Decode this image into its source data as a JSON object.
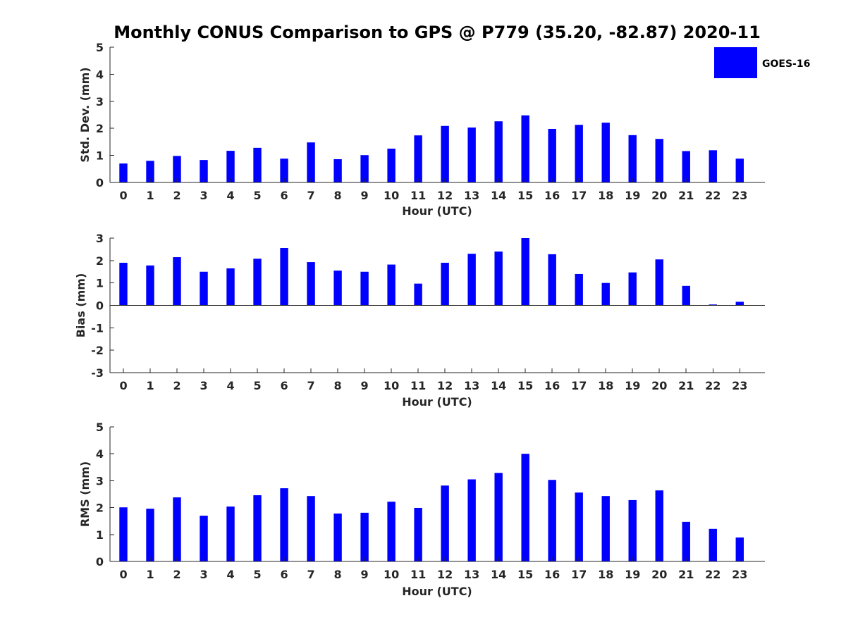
{
  "title": "Monthly CONUS Comparison to GPS @ P779 (35.20, -82.87) 2020-11",
  "legend": {
    "label": "GOES-16",
    "color": "#0000ff"
  },
  "chart_data": [
    {
      "type": "bar",
      "title": "Monthly CONUS Comparison to GPS @ P779 (35.20, -82.87) 2020-11",
      "xlabel": "Hour (UTC)",
      "ylabel": "Std. Dev. (mm)",
      "ylim": [
        0,
        5
      ],
      "yticks": [
        0,
        1,
        2,
        3,
        4,
        5
      ],
      "categories": [
        "0",
        "1",
        "2",
        "3",
        "4",
        "5",
        "6",
        "7",
        "8",
        "9",
        "10",
        "11",
        "12",
        "13",
        "14",
        "15",
        "16",
        "17",
        "18",
        "19",
        "20",
        "21",
        "22",
        "23"
      ],
      "series": [
        {
          "name": "GOES-16",
          "values": [
            0.7,
            0.8,
            0.98,
            0.83,
            1.17,
            1.28,
            0.88,
            1.48,
            0.86,
            1.01,
            1.25,
            1.74,
            2.09,
            2.03,
            2.26,
            2.48,
            1.98,
            2.13,
            2.21,
            1.75,
            1.61,
            1.16,
            1.19,
            0.88
          ]
        }
      ]
    },
    {
      "type": "bar",
      "xlabel": "Hour (UTC)",
      "ylabel": "Bias (mm)",
      "ylim": [
        -3,
        3
      ],
      "yticks": [
        -3,
        -2,
        -1,
        0,
        1,
        2,
        3
      ],
      "categories": [
        "0",
        "1",
        "2",
        "3",
        "4",
        "5",
        "6",
        "7",
        "8",
        "9",
        "10",
        "11",
        "12",
        "13",
        "14",
        "15",
        "16",
        "17",
        "18",
        "19",
        "20",
        "21",
        "22",
        "23"
      ],
      "series": [
        {
          "name": "GOES-16",
          "values": [
            1.9,
            1.78,
            2.15,
            1.5,
            1.65,
            2.08,
            2.56,
            1.93,
            1.55,
            1.5,
            1.82,
            0.97,
            1.9,
            2.3,
            2.4,
            3.0,
            2.28,
            1.4,
            1.0,
            1.47,
            2.05,
            0.87,
            0.04,
            0.16
          ]
        }
      ]
    },
    {
      "type": "bar",
      "xlabel": "Hour (UTC)",
      "ylabel": "RMS (mm)",
      "ylim": [
        0,
        5
      ],
      "yticks": [
        0,
        1,
        2,
        3,
        4,
        5
      ],
      "categories": [
        "0",
        "1",
        "2",
        "3",
        "4",
        "5",
        "6",
        "7",
        "8",
        "9",
        "10",
        "11",
        "12",
        "13",
        "14",
        "15",
        "16",
        "17",
        "18",
        "19",
        "20",
        "21",
        "22",
        "23"
      ],
      "series": [
        {
          "name": "GOES-16",
          "values": [
            2.01,
            1.96,
            2.38,
            1.7,
            2.04,
            2.46,
            2.72,
            2.43,
            1.78,
            1.81,
            2.22,
            1.99,
            2.82,
            3.05,
            3.29,
            4.0,
            3.03,
            2.56,
            2.43,
            2.28,
            2.64,
            1.47,
            1.21,
            0.89
          ]
        }
      ]
    }
  ]
}
